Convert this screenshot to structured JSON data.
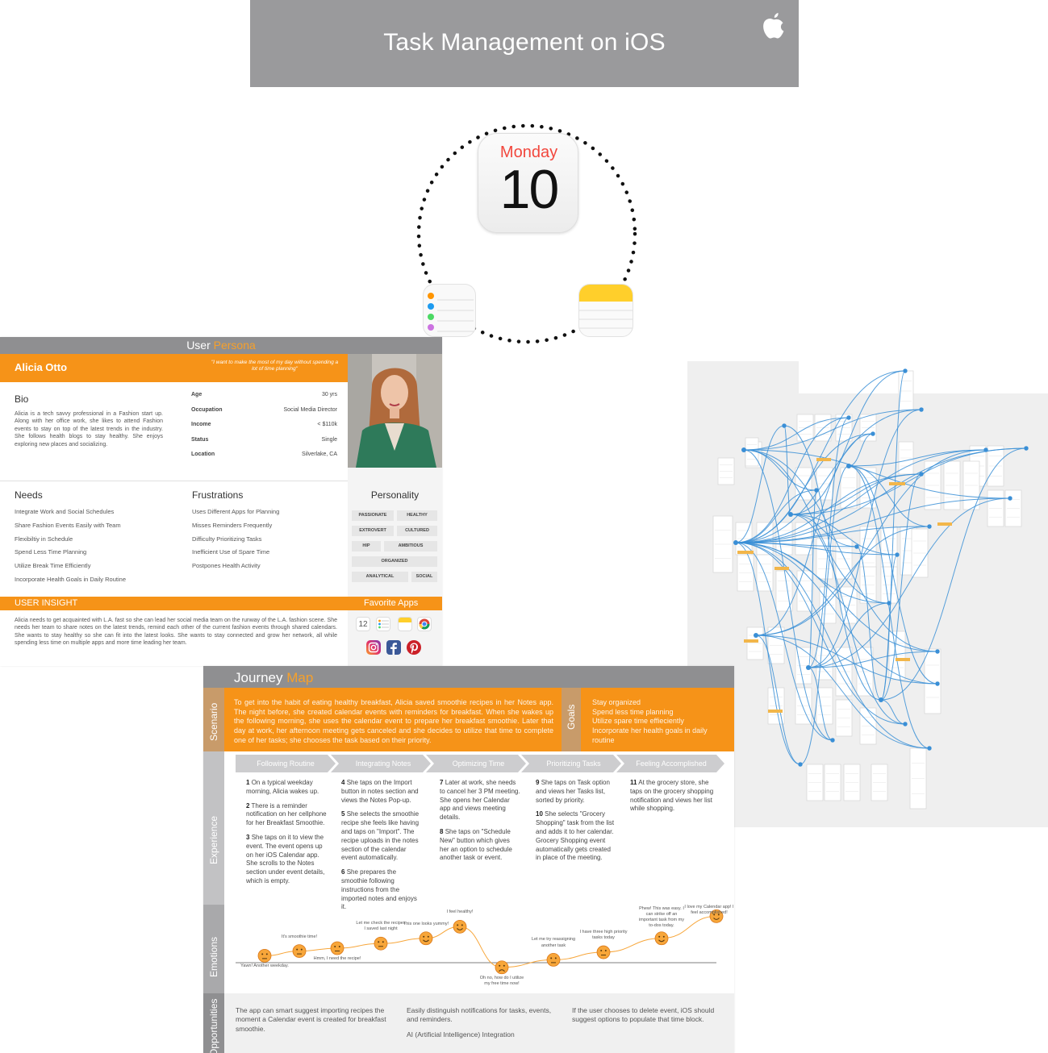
{
  "title_card": {
    "title": "Task Management on iOS",
    "calendar_day": "Monday",
    "calendar_date": "10",
    "icons": [
      "apple-logo-icon",
      "calendar-app-icon",
      "reminders-app-icon",
      "notes-app-icon"
    ]
  },
  "persona": {
    "heading_main": "User",
    "heading_accent": "Persona",
    "name": "Alicia Otto",
    "quote": "\"I want to make the most of my day without spending a lot of time planning\"",
    "bio_title": "Bio",
    "bio": "Alicia is a tech savvy professional in a Fashion start up. Along with her office work, she likes to attend Fashion events to stay on top of the latest trends in the industry. She follows health blogs to stay healthy. She enjoys exploring new places and socializing.",
    "stats": [
      {
        "label": "Age",
        "value": "30 yrs"
      },
      {
        "label": "Occupation",
        "value": "Social Media Director"
      },
      {
        "label": "Income",
        "value": "< $110k"
      },
      {
        "label": "Status",
        "value": "Single"
      },
      {
        "label": "Location",
        "value": "Silverlake, CA"
      }
    ],
    "needs_title": "Needs",
    "needs": [
      "Integrate Work and Social Schedules",
      "Share Fashion Events Easily with Team",
      "Flexibiltiy in Schedule",
      "Spend Less Time Planning",
      "Utilize Break Time Efficiently",
      "Incorporate Health Goals in Daily Routine"
    ],
    "frustrations_title": "Frustrations",
    "frustrations": [
      "Uses Different Apps for Planning",
      "Misses Reminders Frequently",
      "Difficulty Prioritizing Tasks",
      "Inefficient Use of Spare Time",
      "Postpones Health Activity"
    ],
    "personality_title": "Personality",
    "personality": [
      "PASSIONATE",
      "HEALTHY",
      "EXTROVERT",
      "CULTURED",
      "HIP",
      "AMBITIOUS",
      "ORGANIZED",
      "ANALYTICAL",
      "SOCIAL"
    ],
    "insight_title": "USER INSIGHT",
    "insight": "Alicia needs to get acquainted with L.A. fast so she can lead her social media team on the runway of the L.A. fashion scene. She needs her team to share notes on the latest trends, remind each other of the current fashion events through shared calendars. She wants to stay healthy so she can fit into the latest looks. She wants to stay connected and grow her network, all while spending less time on multiple apps and more time leading her team.",
    "favorite_apps_title": "Favorite Apps",
    "favorite_apps": [
      "calendar-icon",
      "reminders-icon",
      "notes-icon",
      "chrome-icon",
      "instagram-icon",
      "facebook-icon",
      "pinterest-icon"
    ],
    "calendar_icon_date": "12"
  },
  "journey": {
    "title_main": "Journey",
    "title_accent": "Map",
    "scenario_label": "Scenario",
    "scenario": "To get into the habit of eating healthy breakfast, Alicia saved smoothie recipes in her Notes app. The night before, she created calendar events with reminders for breakfast. When she wakes up the following morning, she uses the calendar event to prepare her breakfast smoothie. Later that day at work, her afternoon meeting gets canceled and she decides to utilize that time to complete one of her tasks; she chooses the task based on their priority.",
    "goals_label": "Goals",
    "goals": [
      "Stay organized",
      "Spend less time planning",
      "Utilize spare time effieciently",
      "Incorporate her health goals in daily routine"
    ],
    "experience_label": "Experience",
    "phases": [
      "Following Routine",
      "Integrating Notes",
      "Optimizing Time",
      "Prioritizing Tasks",
      "Feeling Accomplished"
    ],
    "steps": [
      [
        {
          "n": "1",
          "t": "On a typical weekday morning, Alicia wakes up."
        },
        {
          "n": "2",
          "t": "There is a reminder notification on her cellphone for her Breakfast Smoothie."
        },
        {
          "n": "3",
          "t": "She taps on it to view the event. The event opens up on her iOS Calendar app. She scrolls to the Notes section under event details, which is empty."
        }
      ],
      [
        {
          "n": "4",
          "t": "She taps on the Import button in notes section and views the Notes Pop-up."
        },
        {
          "n": "5",
          "t": "She selects the smoothie recipe she feels like having and taps on \"Import\". The recipe uploads in the notes section of the calendar event automatically."
        },
        {
          "n": "6",
          "t": "She prepares the smoothie following instructions from the imported notes and enjoys it."
        }
      ],
      [
        {
          "n": "7",
          "t": "Later at work, she needs to cancel her 3 PM meeting. She opens her Calendar app and views meeting details."
        },
        {
          "n": "8",
          "t": "She taps on \"Schedule New\" button which gives her an option to schedule another task or event."
        }
      ],
      [
        {
          "n": "9",
          "t": "She taps on Task option and views her Tasks list, sorted by priority."
        },
        {
          "n": "10",
          "t": "She selects \"Grocery Shopping\" task from the list and adds it to her calendar. Grocery Shopping event automatically gets created in place of the meeting."
        }
      ],
      [
        {
          "n": "11",
          "t": "At the grocery store, she taps on the grocery shopping notification and views her list while shopping."
        }
      ]
    ],
    "emotions_label": "Emotions",
    "emotion_points": [
      {
        "label": "Yawn! Another weekday.",
        "level": 0.12,
        "mood": "neutral"
      },
      {
        "label": "It's smoothie time!",
        "level": 0.2,
        "mood": "neutral"
      },
      {
        "label": "Hmm, I need the recipe!",
        "level": 0.25,
        "mood": "neutral"
      },
      {
        "label": "Let me check the recipes I saved last night",
        "level": 0.33,
        "mood": "neutral"
      },
      {
        "label": "This one looks yummy!",
        "level": 0.42,
        "mood": "happy"
      },
      {
        "label": "I feel healthy!",
        "level": 0.62,
        "mood": "happy"
      },
      {
        "label": "Oh no, how do I utilize my free time now!",
        "level": -0.08,
        "mood": "sad"
      },
      {
        "label": "Let me try reassigning another task",
        "level": 0.05,
        "mood": "neutral"
      },
      {
        "label": "I have three high priority tasks today",
        "level": 0.18,
        "mood": "neutral"
      },
      {
        "label": "Phew! This was easy. I can strike off an important task from my to-dos today.",
        "level": 0.42,
        "mood": "happy"
      },
      {
        "label": "I love my Calendar app! I feel accomplished!",
        "level": 0.8,
        "mood": "happy"
      }
    ],
    "opportunities_label": "Opportunities",
    "opportunities": [
      "The app can smart suggest importing recipes the moment a Calendar event is created for breakfast smoothie.",
      "Easily distinguish notifications for tasks, events, and reminders.",
      "AI (Artificial Intelligence) Integration",
      "If the user chooses to delete event, iOS should suggest options to populate that time block."
    ]
  },
  "colors": {
    "orange": "#f69318",
    "gray_header": "#8f8f91",
    "title_gray": "#9a9a9c",
    "flow_blue": "#3a8fd6",
    "calendar_red": "#f2473d",
    "notes_yellow": "#ffcf2b"
  }
}
